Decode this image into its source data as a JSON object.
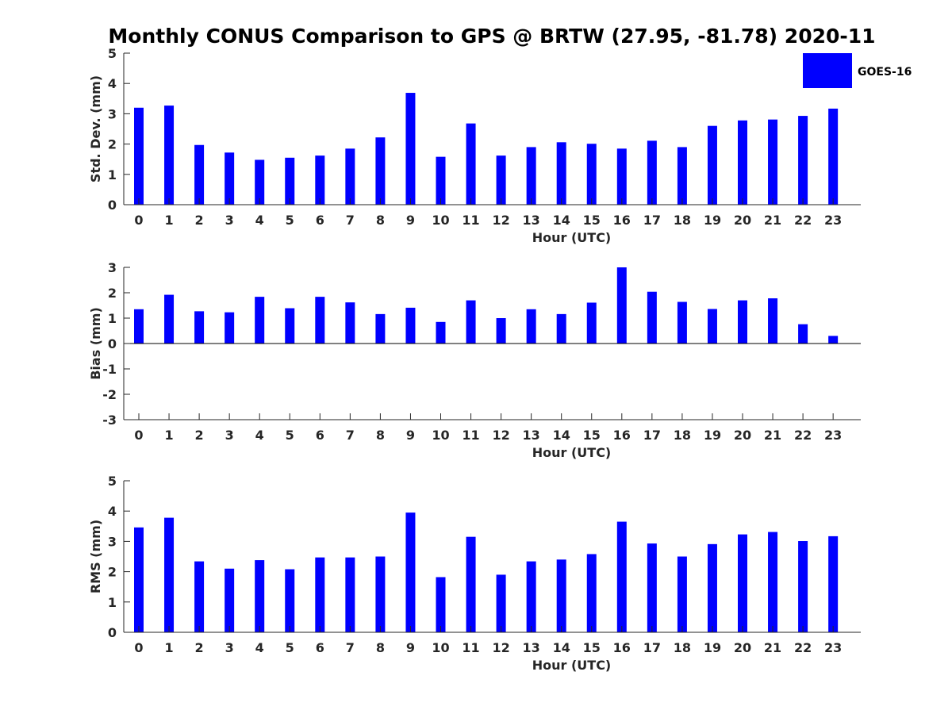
{
  "title": "Monthly CONUS Comparison to GPS @ BRTW (27.95, -81.78) 2020-11",
  "legend": {
    "label": "GOES-16",
    "position": "top-right"
  },
  "colors": {
    "bar": "#0000ff",
    "axis": "#262626"
  },
  "chart_data": [
    {
      "type": "bar",
      "ylabel": "Std. Dev. (mm)",
      "xlabel": "Hour (UTC)",
      "categories": [
        "0",
        "1",
        "2",
        "3",
        "4",
        "5",
        "6",
        "7",
        "8",
        "9",
        "10",
        "11",
        "12",
        "13",
        "14",
        "15",
        "16",
        "17",
        "18",
        "19",
        "20",
        "21",
        "22",
        "23"
      ],
      "series": [
        {
          "name": "GOES-16",
          "values": [
            3.2,
            3.27,
            1.97,
            1.72,
            1.48,
            1.55,
            1.62,
            1.85,
            2.22,
            3.69,
            1.58,
            2.68,
            1.62,
            1.9,
            2.06,
            2.01,
            1.85,
            2.11,
            1.9,
            2.6,
            2.78,
            2.81,
            2.93,
            3.17
          ]
        }
      ],
      "ylim": [
        0,
        5
      ],
      "yticks": [
        "0",
        "1",
        "2",
        "3",
        "4",
        "5"
      ],
      "grid": false
    },
    {
      "type": "bar",
      "ylabel": "Bias (mm)",
      "xlabel": "Hour (UTC)",
      "categories": [
        "0",
        "1",
        "2",
        "3",
        "4",
        "5",
        "6",
        "7",
        "8",
        "9",
        "10",
        "11",
        "12",
        "13",
        "14",
        "15",
        "16",
        "17",
        "18",
        "19",
        "20",
        "21",
        "22",
        "23"
      ],
      "series": [
        {
          "name": "GOES-16",
          "values": [
            1.35,
            1.92,
            1.27,
            1.23,
            1.84,
            1.39,
            1.84,
            1.62,
            1.16,
            1.41,
            0.85,
            1.7,
            1.0,
            1.35,
            1.16,
            1.61,
            3.0,
            2.04,
            1.64,
            1.36,
            1.7,
            1.78,
            0.76,
            0.3
          ]
        }
      ],
      "ylim": [
        -3,
        3
      ],
      "yticks": [
        "-3",
        "-2",
        "-1",
        "0",
        "1",
        "2",
        "3"
      ],
      "grid": false
    },
    {
      "type": "bar",
      "ylabel": "RMS (mm)",
      "xlabel": "Hour (UTC)",
      "categories": [
        "0",
        "1",
        "2",
        "3",
        "4",
        "5",
        "6",
        "7",
        "8",
        "9",
        "10",
        "11",
        "12",
        "13",
        "14",
        "15",
        "16",
        "17",
        "18",
        "19",
        "20",
        "21",
        "22",
        "23"
      ],
      "series": [
        {
          "name": "GOES-16",
          "values": [
            3.46,
            3.78,
            2.34,
            2.1,
            2.38,
            2.08,
            2.47,
            2.47,
            2.5,
            3.95,
            1.82,
            3.15,
            1.9,
            2.34,
            2.4,
            2.58,
            3.65,
            2.93,
            2.5,
            2.91,
            3.23,
            3.31,
            3.01,
            3.17
          ]
        }
      ],
      "ylim": [
        0,
        5
      ],
      "yticks": [
        "0",
        "1",
        "2",
        "3",
        "4",
        "5"
      ],
      "grid": false
    }
  ]
}
